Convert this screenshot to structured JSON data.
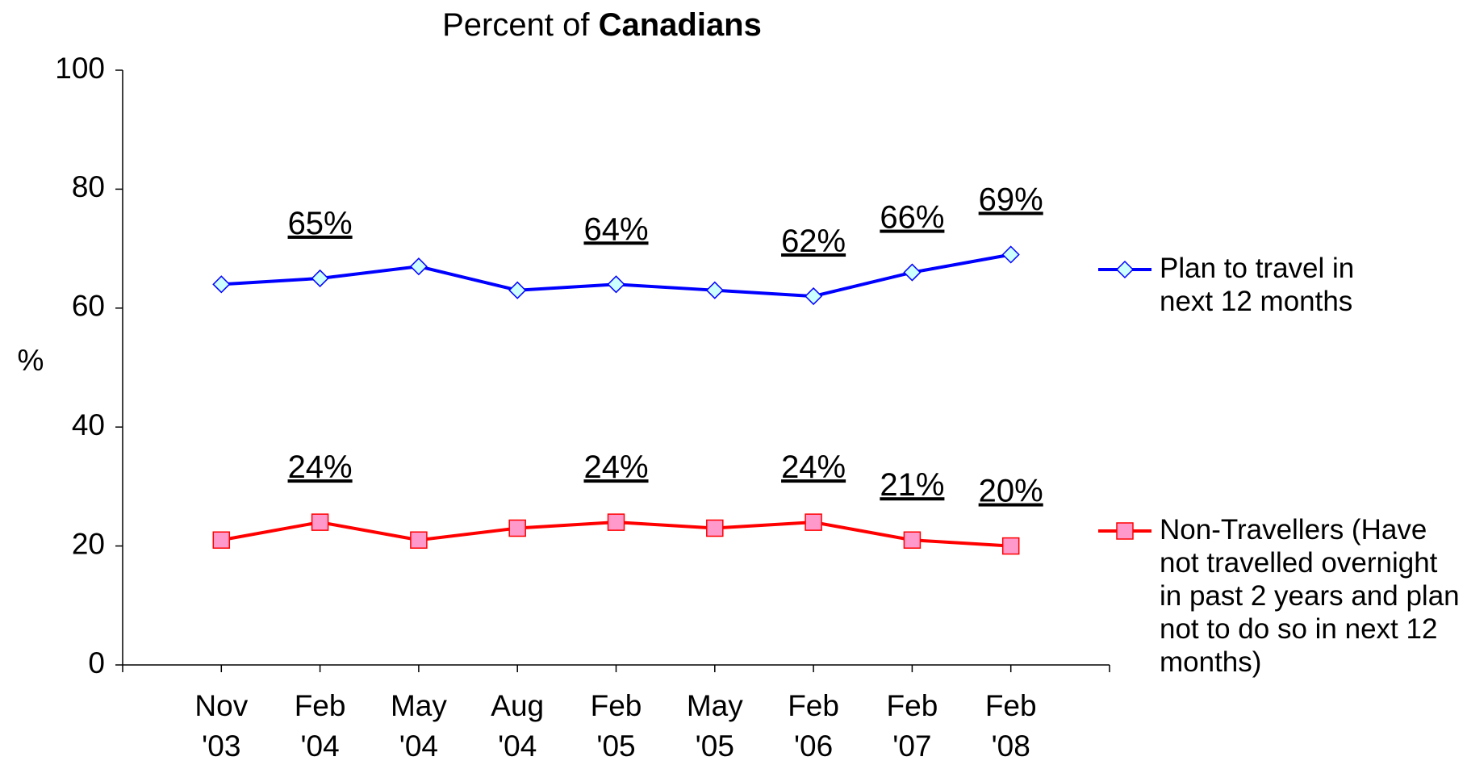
{
  "chart_data": {
    "type": "line",
    "title": [
      "Percent of",
      "Canadians"
    ],
    "y_label": "%",
    "categories": [
      "Nov '03",
      "Feb '04",
      "May '04",
      "Aug '04",
      "Feb '05",
      "May '05",
      "Feb '06",
      "Feb '07",
      "Feb '08"
    ],
    "ylim": [
      0,
      100
    ],
    "yticks": [
      0,
      20,
      40,
      60,
      80,
      100
    ],
    "legend": "right",
    "series": [
      {
        "name": "Plan to travel in next 12 months",
        "color": "#0000ff",
        "marker": "diamond",
        "marker_fill": "#ccffff",
        "values": [
          64,
          65,
          67,
          63,
          64,
          63,
          62,
          66,
          69
        ],
        "value_labels": [
          null,
          "65%",
          null,
          null,
          "64%",
          null,
          "62%",
          "66%",
          "69%"
        ]
      },
      {
        "name": "Non-Travellers (Have not travelled overnight in past 2 years and plan not to do so in next 12 months)",
        "color": "#ff0000",
        "marker": "square",
        "marker_fill": "#ff99cc",
        "values": [
          21,
          24,
          21,
          23,
          24,
          23,
          24,
          21,
          20
        ],
        "value_labels": [
          null,
          "24%",
          null,
          null,
          "24%",
          null,
          "24%",
          "21%",
          "20%"
        ]
      }
    ]
  }
}
